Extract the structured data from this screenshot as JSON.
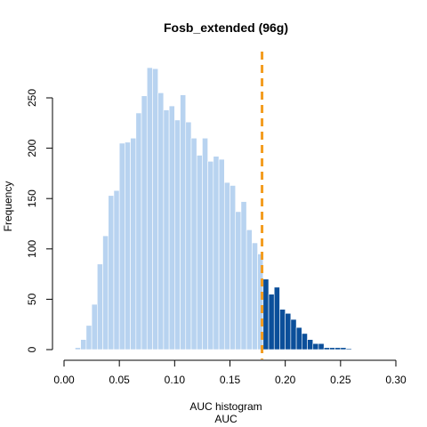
{
  "chart_data": {
    "type": "bar",
    "title": "Fosb_extended (96g)",
    "xlabel_line1": "AUC histogram",
    "xlabel_line2": "AUC",
    "ylabel": "Frequency",
    "xlim": [
      0,
      0.3
    ],
    "ylim": [
      0,
      290
    ],
    "x_ticks": [
      0.0,
      0.05,
      0.1,
      0.15,
      0.2,
      0.25,
      0.3
    ],
    "x_tick_labels": [
      "0.00",
      "0.05",
      "0.10",
      "0.15",
      "0.20",
      "0.25",
      "0.30"
    ],
    "y_ticks": [
      0,
      50,
      100,
      150,
      200,
      250
    ],
    "y_tick_labels": [
      "0",
      "50",
      "100",
      "150",
      "200",
      "250"
    ],
    "bin_start": 0.01,
    "bin_width": 0.005,
    "counts": [
      2,
      10,
      24,
      45,
      85,
      113,
      153,
      158,
      205,
      206,
      210,
      235,
      252,
      280,
      279,
      255,
      238,
      242,
      228,
      253,
      226,
      210,
      193,
      210,
      187,
      192,
      189,
      166,
      163,
      137,
      147,
      119,
      106,
      95,
      70,
      55,
      62,
      40,
      36,
      30,
      22,
      16,
      10,
      6,
      6,
      2,
      2,
      2,
      2,
      1
    ],
    "threshold": 0.179,
    "colors": {
      "below": "#b8d3f0",
      "above": "#0b4f9a",
      "threshold_line": "#f39c1f"
    }
  }
}
